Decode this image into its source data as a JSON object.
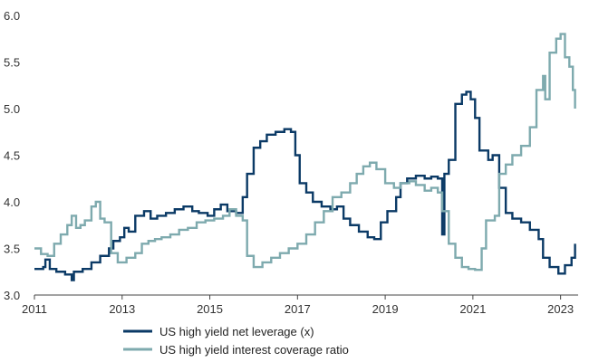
{
  "chart_data": {
    "type": "line",
    "title": "",
    "xlabel": "",
    "ylabel": "",
    "xlim": [
      2011.0,
      2023.4
    ],
    "ylim": [
      3.0,
      6.0
    ],
    "grid": false,
    "legend_position": "bottom",
    "x_ticks": [
      2011,
      2013,
      2015,
      2017,
      2019,
      2021,
      2023
    ],
    "x_tick_labels": [
      "2011",
      "2013",
      "2015",
      "2017",
      "2019",
      "2021",
      "2023"
    ],
    "y_ticks": [
      3.0,
      3.5,
      4.0,
      4.5,
      5.0,
      5.5,
      6.0
    ],
    "y_tick_labels": [
      "3.0",
      "3.5",
      "4.0",
      "4.5",
      "5.0",
      "5.5",
      "6.0"
    ],
    "series": [
      {
        "name": "US high yield net leverage (x)",
        "color": "#0b3a66",
        "x": [
          2011.0,
          2011.2,
          2011.25,
          2011.35,
          2011.5,
          2011.7,
          2011.85,
          2011.9,
          2012.1,
          2012.3,
          2012.5,
          2012.7,
          2012.8,
          2012.95,
          2013.05,
          2013.15,
          2013.3,
          2013.5,
          2013.65,
          2013.8,
          2014.0,
          2014.2,
          2014.4,
          2014.6,
          2014.75,
          2014.95,
          2015.1,
          2015.25,
          2015.4,
          2015.6,
          2015.75,
          2015.85,
          2016.0,
          2016.15,
          2016.3,
          2016.5,
          2016.7,
          2016.85,
          2016.95,
          2017.05,
          2017.2,
          2017.35,
          2017.55,
          2017.75,
          2017.9,
          2018.05,
          2018.2,
          2018.4,
          2018.6,
          2018.75,
          2018.9,
          2019.05,
          2019.25,
          2019.35,
          2019.5,
          2019.7,
          2019.9,
          2020.05,
          2020.2,
          2020.3,
          2020.35,
          2020.45,
          2020.6,
          2020.75,
          2020.85,
          2020.95,
          2021.05,
          2021.15,
          2021.35,
          2021.45,
          2021.6,
          2021.75,
          2021.9,
          2022.1,
          2022.3,
          2022.5,
          2022.6,
          2022.75,
          2022.95,
          2023.1,
          2023.25,
          2023.33
        ],
        "values": [
          3.28,
          3.3,
          3.38,
          3.28,
          3.25,
          3.22,
          3.16,
          3.25,
          3.28,
          3.35,
          3.42,
          3.5,
          3.58,
          3.62,
          3.72,
          3.68,
          3.85,
          3.9,
          3.82,
          3.85,
          3.88,
          3.92,
          3.95,
          3.9,
          3.88,
          3.85,
          3.92,
          3.97,
          3.9,
          3.88,
          4.05,
          4.3,
          4.58,
          4.65,
          4.72,
          4.75,
          4.78,
          4.75,
          4.5,
          4.2,
          4.1,
          4.0,
          3.95,
          3.92,
          3.95,
          3.82,
          3.75,
          3.68,
          3.62,
          3.6,
          3.78,
          3.9,
          4.05,
          4.2,
          4.25,
          4.28,
          4.25,
          4.27,
          4.25,
          3.65,
          4.3,
          4.45,
          5.05,
          5.15,
          5.18,
          5.1,
          4.9,
          4.55,
          4.45,
          4.5,
          4.15,
          3.88,
          3.82,
          3.78,
          3.7,
          3.6,
          3.4,
          3.3,
          3.23,
          3.32,
          3.4,
          3.55
        ]
      },
      {
        "name": "US high yield interest coverage ratio",
        "color": "#7eaaae",
        "x": [
          2011.0,
          2011.15,
          2011.3,
          2011.45,
          2011.6,
          2011.75,
          2011.85,
          2011.95,
          2012.05,
          2012.15,
          2012.3,
          2012.4,
          2012.5,
          2012.6,
          2012.75,
          2012.9,
          2013.0,
          2013.1,
          2013.3,
          2013.45,
          2013.6,
          2013.75,
          2013.9,
          2014.1,
          2014.3,
          2014.5,
          2014.7,
          2014.9,
          2015.1,
          2015.3,
          2015.45,
          2015.6,
          2015.75,
          2015.85,
          2016.0,
          2016.2,
          2016.4,
          2016.6,
          2016.8,
          2017.0,
          2017.2,
          2017.4,
          2017.6,
          2017.8,
          2018.0,
          2018.2,
          2018.35,
          2018.5,
          2018.65,
          2018.8,
          2019.0,
          2019.2,
          2019.35,
          2019.55,
          2019.7,
          2019.9,
          2020.05,
          2020.2,
          2020.3,
          2020.45,
          2020.6,
          2020.75,
          2020.9,
          2021.05,
          2021.2,
          2021.3,
          2021.5,
          2021.6,
          2021.75,
          2021.9,
          2022.1,
          2022.3,
          2022.45,
          2022.6,
          2022.65,
          2022.75,
          2022.9,
          2023.0,
          2023.1,
          2023.2,
          2023.28,
          2023.33
        ],
        "values": [
          3.5,
          3.44,
          3.42,
          3.55,
          3.65,
          3.75,
          3.85,
          3.72,
          3.75,
          3.8,
          3.95,
          4.0,
          3.82,
          3.78,
          3.45,
          3.35,
          3.35,
          3.4,
          3.45,
          3.55,
          3.58,
          3.6,
          3.62,
          3.65,
          3.7,
          3.72,
          3.78,
          3.8,
          3.82,
          3.85,
          3.92,
          3.85,
          3.8,
          3.42,
          3.3,
          3.35,
          3.4,
          3.45,
          3.5,
          3.55,
          3.65,
          3.78,
          3.9,
          4.05,
          4.1,
          4.2,
          4.3,
          4.38,
          4.42,
          4.35,
          4.2,
          4.15,
          4.2,
          4.22,
          4.18,
          4.12,
          4.15,
          4.1,
          3.9,
          3.55,
          3.4,
          3.3,
          3.28,
          3.27,
          3.5,
          3.8,
          3.85,
          4.3,
          4.4,
          4.5,
          4.6,
          4.8,
          5.2,
          5.35,
          5.1,
          5.6,
          5.75,
          5.8,
          5.55,
          5.45,
          5.2,
          5.0
        ]
      }
    ]
  }
}
